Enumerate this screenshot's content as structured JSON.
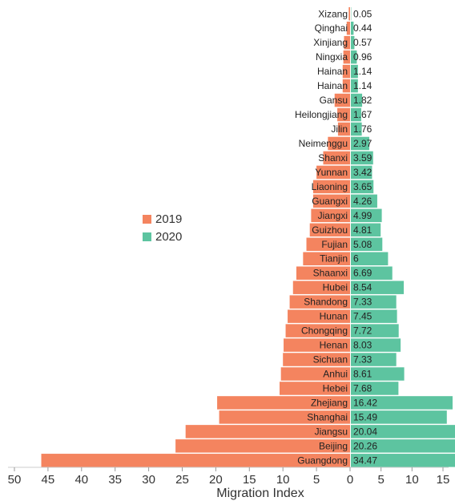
{
  "chart_data": {
    "type": "bar",
    "orientation": "horizontal-diverging",
    "xlabel": "Migration Index",
    "x_ticks_left": [
      "50",
      "45",
      "40",
      "35",
      "30",
      "25",
      "20",
      "15",
      "10",
      "5",
      "0"
    ],
    "x_ticks_right": [
      "5",
      "10",
      "15"
    ],
    "xlim_left": [
      0,
      50
    ],
    "xlim_right": [
      0,
      15
    ],
    "legend": [
      {
        "name": "2019",
        "color": "#f4845f"
      },
      {
        "name": "2020",
        "color": "#5dc4a0"
      }
    ],
    "categories": [
      "Xizang",
      "Qinghai",
      "Xinjiang",
      "Ningxia",
      "Hainan",
      "Hainan",
      "Gansu",
      "Heilongjiang",
      "Jilin",
      "Neimenggu",
      "Shanxi",
      "Yunnan",
      "Liaoning",
      "Guangxi",
      "Jiangxi",
      "Guizhou",
      "Fujian",
      "Tianjin",
      "Shaanxi",
      "Hubei",
      "Shandong",
      "Hunan",
      "Chongqing",
      "Henan",
      "Sichuan",
      "Anhui",
      "Hebei",
      "Zhejiang",
      "Shanghai",
      "Jiangsu",
      "Beijing",
      "Guangdong"
    ],
    "series": [
      {
        "name": "2019",
        "values": [
          0.2,
          0.5,
          0.9,
          1.0,
          1.1,
          1.1,
          2.3,
          1.9,
          1.8,
          3.3,
          4.0,
          5.0,
          5.5,
          5.5,
          5.8,
          6.0,
          6.5,
          7.0,
          8.0,
          8.5,
          9.0,
          9.3,
          9.6,
          9.9,
          10.0,
          10.3,
          10.5,
          19.8,
          19.5,
          24.5,
          26.0,
          46.0
        ]
      },
      {
        "name": "2020",
        "values": [
          0.05,
          0.44,
          0.57,
          0.96,
          1.14,
          1.14,
          1.82,
          1.67,
          1.76,
          2.97,
          3.59,
          3.42,
          3.65,
          4.26,
          4.99,
          4.81,
          5.08,
          6,
          6.69,
          8.54,
          7.33,
          7.45,
          7.72,
          8.03,
          7.33,
          8.61,
          7.68,
          16.42,
          15.49,
          20.04,
          20.26,
          34.47
        ]
      }
    ],
    "value_labels": [
      "0.05",
      "0.44",
      "0.57",
      "0.96",
      "1.14",
      "1.14",
      "1.82",
      "1.67",
      "1.76",
      "2.97",
      "3.59",
      "3.42",
      "3.65",
      "4.26",
      "4.99",
      "4.81",
      "5.08",
      "6",
      "6.69",
      "8.54",
      "7.33",
      "7.45",
      "7.72",
      "8.03",
      "7.33",
      "8.61",
      "7.68",
      "16.42",
      "15.49",
      "20.04",
      "20.26",
      "34.47"
    ]
  }
}
